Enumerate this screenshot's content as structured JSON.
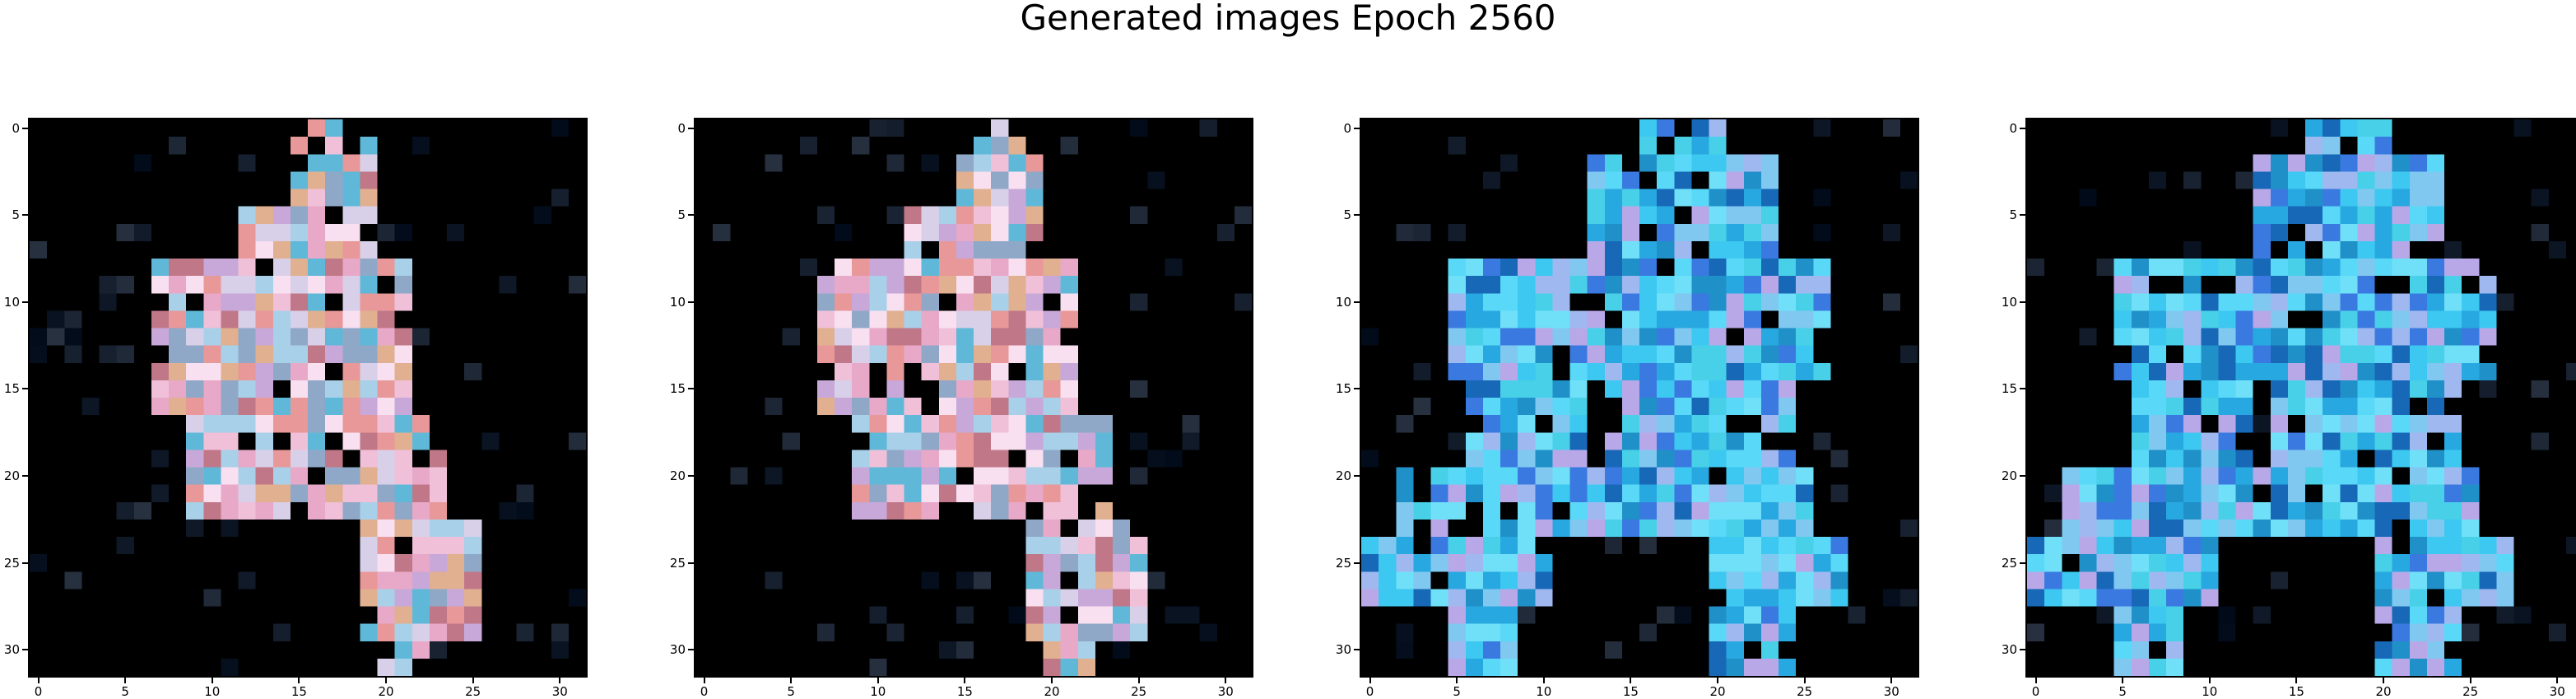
{
  "figure": {
    "title": "Generated images Epoch 2560",
    "x_tick_labels": [
      "0",
      "5",
      "10",
      "15",
      "20",
      "25",
      "30"
    ],
    "y_tick_labels": [
      "0",
      "5",
      "10",
      "15",
      "20",
      "25",
      "30"
    ],
    "panels": [
      {
        "content": "blob-pink-multicolor",
        "seed": 11
      },
      {
        "content": "blob-pink-multicolor",
        "seed": 29
      },
      {
        "content": "blob-cyan-blue",
        "seed": 47
      },
      {
        "content": "blob-cyan-blue",
        "seed": 83
      }
    ],
    "colors": {
      "background": "#000000",
      "pink": "#e8a8c8",
      "cyan": "#3cc8f0",
      "blue": "#3a7ae0"
    }
  }
}
